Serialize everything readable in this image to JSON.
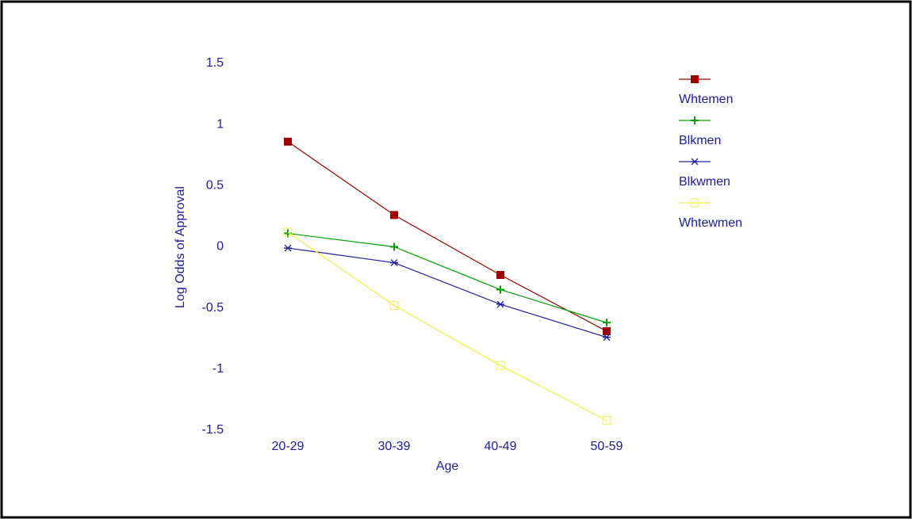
{
  "chart_data": {
    "type": "line",
    "x_label": "Age",
    "y_label": "Log Odds of Approval",
    "categories": [
      "20-29",
      "30-39",
      "40-49",
      "50-59"
    ],
    "series": [
      {
        "name": "Whtemen",
        "color": "#a00000",
        "marker": "filled-square",
        "values": [
          0.86,
          0.26,
          -0.23,
          -0.69
        ]
      },
      {
        "name": "Blkmen",
        "color": "#00a000",
        "marker": "plus",
        "values": [
          0.11,
          0.0,
          -0.35,
          -0.62
        ]
      },
      {
        "name": "Blkwmen",
        "color": "#2020a0",
        "marker": "star",
        "values": [
          -0.01,
          -0.13,
          -0.47,
          -0.74
        ]
      },
      {
        "name": "Whtewmen",
        "color": "#f0f040",
        "marker": "open-square",
        "values": [
          0.12,
          -0.48,
          -0.97,
          -1.42
        ]
      }
    ],
    "ylim": [
      -1.5,
      1.5
    ],
    "yticks": [
      -1.5,
      -1,
      -0.5,
      0,
      0.5,
      1,
      1.5
    ],
    "grid": false,
    "legend": "right"
  }
}
